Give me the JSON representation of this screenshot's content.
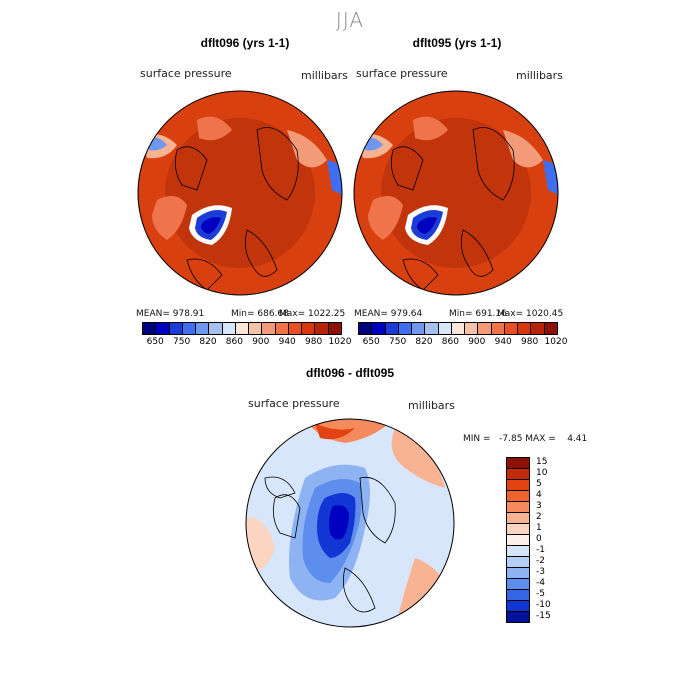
{
  "season": "JJA",
  "panel1": {
    "title": "dflt096 (yrs 1-1)",
    "variable": "surface pressure",
    "units": "millibars",
    "mean": "MEAN= 978.91",
    "min": "Min= 686.68",
    "max": "Max= 1022.25"
  },
  "panel2": {
    "title": "dflt095 (yrs 1-1)",
    "variable": "surface pressure",
    "units": "millibars",
    "mean": "MEAN= 979.64",
    "min": "Min= 691.16",
    "max": "Max= 1020.45"
  },
  "panel3": {
    "title": "dflt096 - dflt095",
    "variable": "surface pressure",
    "units": "millibars",
    "minmax": "MIN =   -7.85 MAX =    4.41"
  },
  "colorbar_top": {
    "ticks": [
      "650",
      "750",
      "820",
      "860",
      "900",
      "940",
      "980",
      "1020"
    ],
    "colors": [
      "#00007f",
      "#0000c0",
      "#1c3cd8",
      "#3f6ff0",
      "#6f97f0",
      "#a6c0f2",
      "#d8e4f8",
      "#fbe6da",
      "#f7c2a8",
      "#f39a78",
      "#ef744c",
      "#e94e24",
      "#d8370e",
      "#b62306",
      "#8a1104"
    ]
  },
  "colorbar_diff": {
    "ticks": [
      "15",
      "10",
      "5",
      "4",
      "3",
      "2",
      "1",
      "0",
      "-1",
      "-2",
      "-3",
      "-4",
      "-5",
      "-10",
      "-15"
    ],
    "colors": [
      "#8a1104",
      "#c42a08",
      "#e34212",
      "#f0632d",
      "#f58b5c",
      "#f8b392",
      "#fbd5c2",
      "#fdf0e8",
      "#d7e6fb",
      "#b4cff8",
      "#8db3f3",
      "#5d8ded",
      "#3466e6",
      "#1236d4",
      "#00129a"
    ]
  }
}
